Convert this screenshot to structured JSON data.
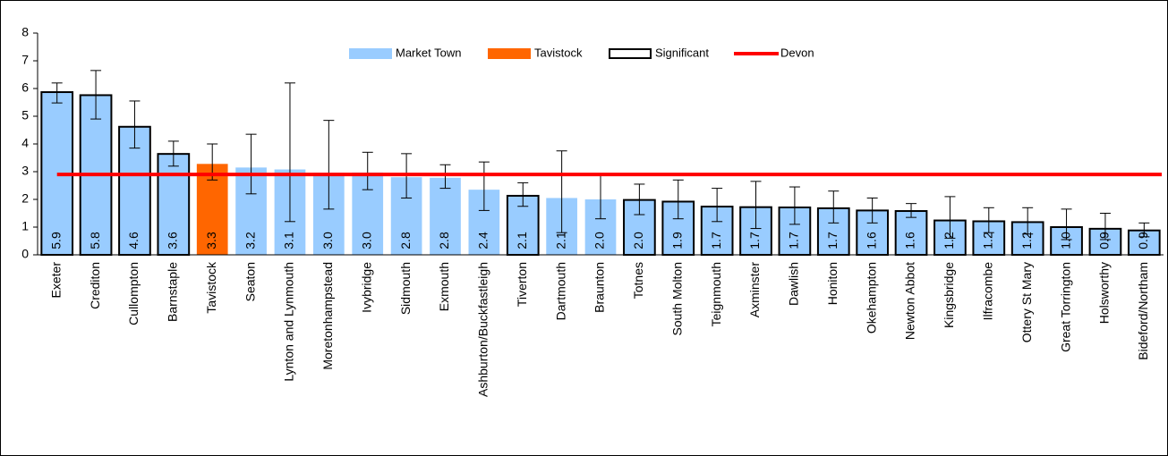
{
  "chart_data": {
    "type": "bar",
    "categories": [
      "Exeter",
      "Crediton",
      "Cullompton",
      "Barnstaple",
      "Tavistock",
      "Seaton",
      "Lynton and Lynmouth",
      "Moretonhampstead",
      "Ivybridge",
      "Sidmouth",
      "Exmouth",
      "Ashburton/Buckfastleigh",
      "Tiverton",
      "Dartmouth",
      "Braunton",
      "Totnes",
      "South Molton",
      "Teignmouth",
      "Axminster",
      "Dawlish",
      "Honiton",
      "Okehampton",
      "Newton Abbot",
      "Kingsbridge",
      "Ilfracombe",
      "Ottery St Mary",
      "Great Torrington",
      "Holsworthy",
      "Bideford/Northam"
    ],
    "values": [
      5.87,
      5.76,
      4.62,
      3.64,
      3.28,
      3.15,
      3.08,
      2.96,
      2.97,
      2.8,
      2.78,
      2.35,
      2.13,
      2.05,
      2.0,
      1.98,
      1.92,
      1.74,
      1.72,
      1.71,
      1.68,
      1.6,
      1.58,
      1.24,
      1.21,
      1.18,
      1.0,
      0.94,
      0.88
    ],
    "value_labels": [
      "5.9",
      "5.8",
      "4.6",
      "3.6",
      "3.3",
      "3.2",
      "3.1",
      "3.0",
      "3.0",
      "2.8",
      "2.8",
      "2.4",
      "2.1",
      "2.1",
      "2.0",
      "2.0",
      "1.9",
      "1.7",
      "1.7",
      "1.7",
      "1.7",
      "1.6",
      "1.6",
      "1.2",
      "1.2",
      "1.2",
      "1.0",
      "0.9",
      "0.9"
    ],
    "ci_low": [
      5.48,
      4.9,
      3.85,
      3.2,
      2.7,
      2.2,
      1.2,
      1.65,
      2.35,
      2.05,
      2.4,
      1.6,
      1.75,
      0.8,
      1.3,
      1.45,
      1.3,
      1.2,
      0.95,
      1.1,
      1.15,
      1.15,
      1.35,
      0.6,
      0.8,
      0.75,
      0.55,
      0.55,
      0.65
    ],
    "ci_high": [
      6.2,
      6.65,
      5.55,
      4.1,
      4.0,
      4.35,
      6.2,
      4.85,
      3.7,
      3.65,
      3.25,
      3.35,
      2.6,
      3.75,
      2.9,
      2.55,
      2.7,
      2.4,
      2.65,
      2.45,
      2.3,
      2.05,
      1.85,
      2.1,
      1.7,
      1.7,
      1.65,
      1.5,
      1.15
    ],
    "bar_series": [
      0,
      0,
      0,
      0,
      1,
      0,
      0,
      0,
      0,
      0,
      0,
      0,
      0,
      0,
      0,
      0,
      0,
      0,
      0,
      0,
      0,
      0,
      0,
      0,
      0,
      0,
      0,
      0,
      0
    ],
    "significant": [
      true,
      true,
      true,
      true,
      false,
      false,
      false,
      false,
      false,
      false,
      false,
      false,
      true,
      false,
      false,
      true,
      true,
      true,
      true,
      true,
      true,
      true,
      true,
      true,
      true,
      true,
      true,
      true,
      true
    ],
    "series": [
      {
        "name": "Market Town",
        "color": "#99ccff"
      },
      {
        "name": "Tavistock",
        "color": "#ff6600"
      },
      {
        "name": "Significant",
        "color": "#000000"
      },
      {
        "name": "Devon",
        "color": "#ff0000",
        "value": 2.9
      }
    ],
    "ylim": [
      0,
      8
    ],
    "yticks": [
      0,
      1,
      2,
      3,
      4,
      5,
      6,
      7,
      8
    ],
    "grid": false,
    "legend": "top"
  }
}
